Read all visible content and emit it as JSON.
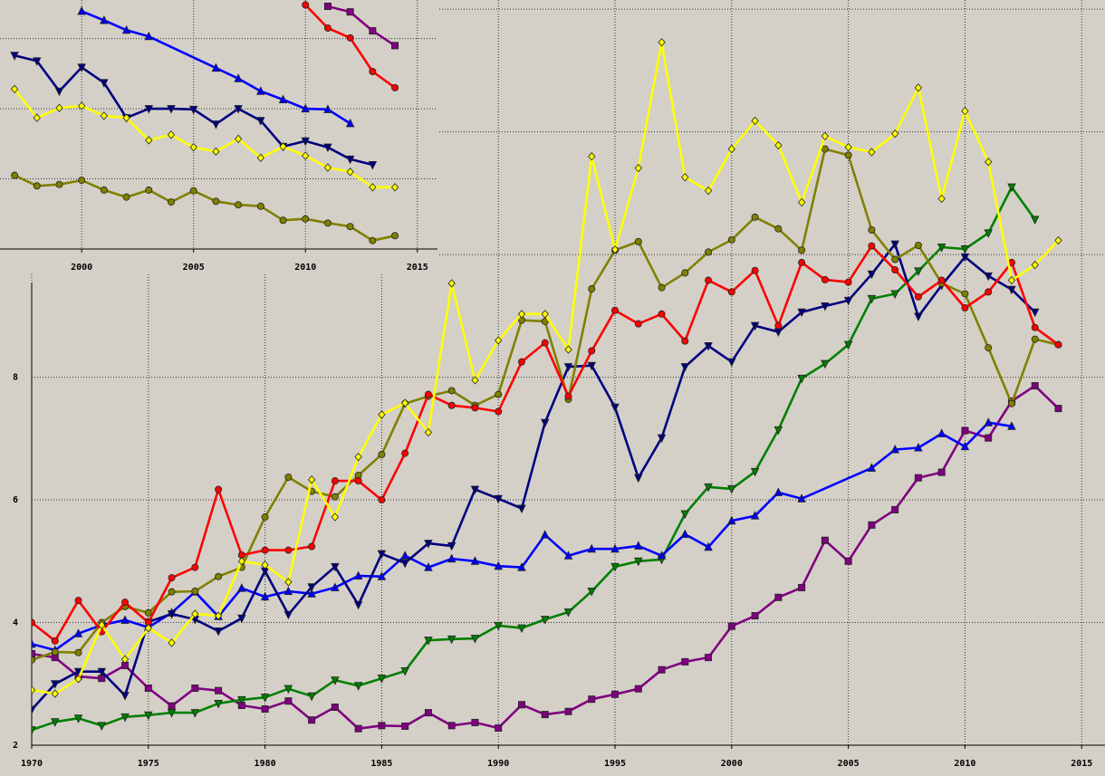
{
  "chart_data": [
    {
      "type": "line",
      "x": [
        1970,
        1971,
        1972,
        1973,
        1974,
        1975,
        1976,
        1977,
        1978,
        1979,
        1980,
        1981,
        1982,
        1983,
        1984,
        1985,
        1986,
        1987,
        1988,
        1989,
        1990,
        1991,
        1992,
        1993,
        1994,
        1995,
        1996,
        1997,
        1998,
        1999,
        2000,
        2001,
        2002,
        2003,
        2004,
        2005,
        2006,
        2007,
        2008,
        2009,
        2010,
        2011,
        2012,
        2013,
        2014
      ],
      "xlim": [
        1970,
        2016
      ],
      "ylim": [
        2,
        14.15
      ],
      "xticks": [
        1970,
        1975,
        1980,
        1985,
        1990,
        1995,
        2000,
        2005,
        2010,
        2015
      ],
      "yticks": [
        2,
        4,
        6,
        8,
        10,
        12,
        14
      ],
      "grid": true,
      "ytick_labels": true,
      "series": [
        {
          "color": "#800080",
          "marker": "square",
          "values": [
            3.49,
            3.43,
            3.12,
            3.09,
            3.3,
            2.93,
            2.64,
            2.93,
            2.89,
            2.65,
            2.59,
            2.72,
            2.41,
            2.62,
            2.27,
            2.32,
            2.31,
            2.53,
            2.32,
            2.37,
            2.28,
            2.66,
            2.5,
            2.55,
            2.75,
            2.83,
            2.92,
            3.23,
            3.36,
            3.43,
            3.94,
            4.11,
            4.41,
            4.57,
            5.34,
            5.0,
            5.59,
            5.84,
            6.36,
            6.45,
            7.13,
            7.01,
            7.61,
            7.86,
            7.49
          ]
        },
        {
          "color": "#008000",
          "marker": "triangle-down",
          "values": [
            2.25,
            2.38,
            2.44,
            2.32,
            2.46,
            2.49,
            2.53,
            2.53,
            2.68,
            2.74,
            2.78,
            2.92,
            2.8,
            3.06,
            2.97,
            3.09,
            3.21,
            3.71,
            3.73,
            3.74,
            3.95,
            3.91,
            4.05,
            4.17,
            4.51,
            4.91,
            5.0,
            5.03,
            5.77,
            6.21,
            6.18,
            6.46,
            7.14,
            7.98,
            8.22,
            8.53,
            9.28,
            9.36,
            9.73,
            10.12,
            10.09,
            10.35,
            11.1,
            10.57,
            null
          ]
        },
        {
          "color": "#0000ff",
          "marker": "triangle-up",
          "x": [
            1970,
            1971,
            1972,
            1973,
            1974,
            1975,
            1976,
            1977,
            1978,
            1979,
            1980,
            1981,
            1982,
            1983,
            1984,
            1985,
            1986,
            1987,
            1988,
            1989,
            1990,
            1991,
            1992,
            1993,
            1994,
            1995,
            1996,
            1997,
            1998,
            1999,
            2000,
            2001,
            2002,
            2003,
            2006,
            2007,
            2008,
            2009,
            2010,
            2011,
            2012
          ],
          "values": [
            3.65,
            3.55,
            3.82,
            3.96,
            4.04,
            3.92,
            4.16,
            4.5,
            4.1,
            4.56,
            4.42,
            4.51,
            4.47,
            4.57,
            4.76,
            4.75,
            5.09,
            4.9,
            5.04,
            5.0,
            4.92,
            4.9,
            5.43,
            5.09,
            5.2,
            5.2,
            5.25,
            5.09,
            5.44,
            5.23,
            5.66,
            5.74,
            6.12,
            6.02,
            6.52,
            6.82,
            6.85,
            7.08,
            6.87,
            7.26,
            7.2
          ]
        },
        {
          "color": "#000080",
          "marker": "triangle-down",
          "values": [
            2.58,
            3.0,
            3.2,
            3.2,
            2.81,
            4.01,
            4.14,
            4.05,
            3.86,
            4.07,
            4.84,
            4.13,
            4.58,
            4.91,
            4.29,
            5.12,
            4.97,
            5.29,
            5.25,
            6.17,
            6.02,
            5.86,
            7.26,
            8.17,
            8.19,
            7.51,
            6.36,
            7.01,
            8.17,
            8.51,
            8.25,
            8.84,
            8.74,
            9.06,
            9.16,
            9.25,
            9.68,
            10.17,
            8.99,
            9.5,
            9.96,
            9.65,
            9.43,
            9.06,
            null
          ]
        },
        {
          "color": "#808000",
          "marker": "circle",
          "values": [
            3.39,
            3.52,
            3.51,
            4.0,
            4.26,
            4.16,
            4.5,
            4.51,
            4.75,
            4.9,
            5.72,
            6.37,
            6.14,
            6.05,
            6.4,
            6.74,
            7.57,
            7.69,
            7.78,
            7.54,
            7.72,
            8.93,
            8.91,
            7.64,
            9.44,
            10.07,
            10.21,
            9.46,
            9.7,
            10.04,
            10.24,
            10.61,
            10.42,
            10.07,
            11.72,
            11.62,
            10.4,
            9.92,
            10.15,
            9.53,
            9.36,
            8.48,
            7.57,
            8.62,
            8.53
          ]
        },
        {
          "color": "#ff0000",
          "marker": "circle",
          "values": [
            4.0,
            3.7,
            4.36,
            3.85,
            4.33,
            4.0,
            4.73,
            4.9,
            6.17,
            5.1,
            5.18,
            5.18,
            5.24,
            6.31,
            6.31,
            6.0,
            6.76,
            7.72,
            7.54,
            7.5,
            7.44,
            8.25,
            8.56,
            7.69,
            8.43,
            9.09,
            8.87,
            9.03,
            8.59,
            9.58,
            9.39,
            9.74,
            8.84,
            9.87,
            9.59,
            9.55,
            10.14,
            9.75,
            9.31,
            9.58,
            9.13,
            9.39,
            9.87,
            8.81,
            8.53
          ]
        },
        {
          "color": "#ffff00",
          "marker": "diamond",
          "values": [
            2.9,
            2.84,
            3.08,
            3.96,
            3.4,
            3.91,
            3.67,
            4.14,
            4.11,
            5.0,
            4.94,
            4.66,
            6.33,
            5.72,
            6.7,
            7.39,
            7.58,
            7.1,
            9.53,
            7.95,
            8.6,
            9.03,
            9.03,
            8.45,
            11.6,
            10.08,
            11.41,
            13.46,
            11.26,
            11.04,
            11.72,
            12.18,
            11.78,
            10.85,
            11.93,
            11.75,
            11.67,
            11.97,
            12.72,
            10.91,
            12.34,
            11.51,
            9.58,
            9.83,
            10.23
          ]
        }
      ]
    },
    {
      "type": "line",
      "xlim": [
        1996.35,
        2015.9
      ],
      "ylim": [
        0,
        3.55
      ],
      "xticks": [
        2000,
        2005,
        2010,
        2015
      ],
      "yticks": [
        1,
        2,
        3
      ],
      "grid": true,
      "ytick_labels": false,
      "series": [
        {
          "color": "#800080",
          "marker": "square",
          "x": [
            2011,
            2012,
            2013,
            2014
          ],
          "values": [
            3.46,
            3.38,
            3.11,
            2.9
          ]
        },
        {
          "color": "#0000ff",
          "marker": "triangle-up",
          "x": [
            2000,
            2001,
            2002,
            2003,
            2006,
            2007,
            2008,
            2009,
            2010,
            2011,
            2012
          ],
          "values": [
            3.39,
            3.26,
            3.12,
            3.03,
            2.58,
            2.43,
            2.25,
            2.13,
            2.0,
            1.99,
            1.79
          ]
        },
        {
          "color": "#000080",
          "marker": "triangle-down",
          "x": [
            1997,
            1998,
            1999,
            2000,
            2001,
            2002,
            2003,
            2004,
            2005,
            2006,
            2007,
            2008,
            2009,
            2010,
            2011,
            2012,
            2013
          ],
          "values": [
            2.76,
            2.68,
            2.25,
            2.59,
            2.37,
            1.87,
            2.0,
            2.0,
            1.99,
            1.78,
            2.0,
            1.83,
            1.46,
            1.54,
            1.45,
            1.28,
            1.2
          ]
        },
        {
          "color": "#808000",
          "marker": "circle",
          "x": [
            1997,
            1998,
            1999,
            2000,
            2001,
            2002,
            2003,
            2004,
            2005,
            2006,
            2007,
            2008,
            2009,
            2010,
            2011,
            2012,
            2013,
            2014
          ],
          "values": [
            1.05,
            0.9,
            0.92,
            0.98,
            0.84,
            0.74,
            0.84,
            0.67,
            0.83,
            0.68,
            0.63,
            0.61,
            0.41,
            0.43,
            0.37,
            0.32,
            0.12,
            0.19
          ]
        },
        {
          "color": "#ff0000",
          "marker": "circle",
          "x": [
            2010,
            2011,
            2012,
            2013,
            2014
          ],
          "values": [
            3.48,
            3.15,
            3.01,
            2.53,
            2.3
          ]
        },
        {
          "color": "#ffff00",
          "marker": "diamond",
          "x": [
            1997,
            1998,
            1999,
            2000,
            2001,
            2002,
            2003,
            2004,
            2005,
            2006,
            2007,
            2008,
            2009,
            2010,
            2011,
            2012,
            2013,
            2014
          ],
          "values": [
            2.28,
            1.87,
            2.01,
            2.04,
            1.9,
            1.87,
            1.55,
            1.63,
            1.45,
            1.39,
            1.57,
            1.3,
            1.46,
            1.33,
            1.16,
            1.1,
            0.88,
            0.88
          ]
        }
      ]
    }
  ]
}
